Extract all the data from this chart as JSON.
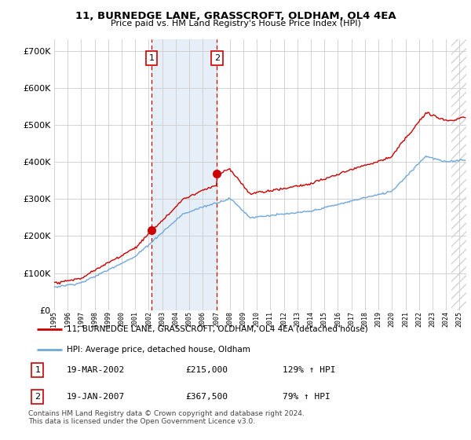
{
  "title": "11, BURNEDGE LANE, GRASSCROFT, OLDHAM, OL4 4EA",
  "subtitle": "Price paid vs. HM Land Registry's House Price Index (HPI)",
  "legend_line1": "11, BURNEDGE LANE, GRASSCROFT, OLDHAM, OL4 4EA (detached house)",
  "legend_line2": "HPI: Average price, detached house, Oldham",
  "sale1_label": "1",
  "sale1_date": "19-MAR-2002",
  "sale1_price": "£215,000",
  "sale1_hpi": "129% ↑ HPI",
  "sale1_year": 2002.2,
  "sale1_value": 215000,
  "sale2_label": "2",
  "sale2_date": "19-JAN-2007",
  "sale2_price": "£367,500",
  "sale2_hpi": "79% ↑ HPI",
  "sale2_year": 2007.05,
  "sale2_value": 367500,
  "footnote": "Contains HM Land Registry data © Crown copyright and database right 2024.\nThis data is licensed under the Open Government Licence v3.0.",
  "hpi_color": "#6fa8dc",
  "price_color": "#cc0000",
  "ylim": [
    0,
    730000
  ],
  "xlim_start": 1995.0,
  "xlim_end": 2025.5
}
